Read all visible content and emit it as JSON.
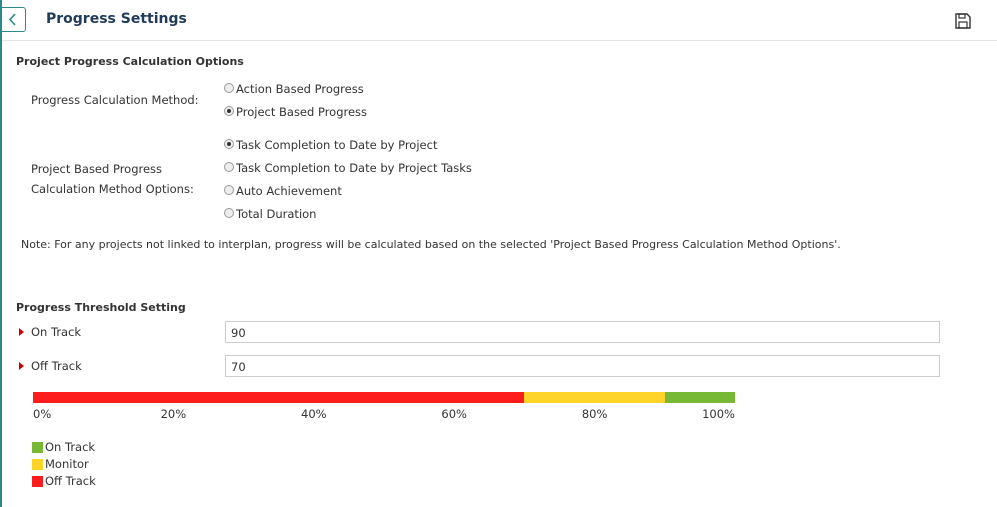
{
  "header": {
    "title": "Progress Settings"
  },
  "calculation": {
    "title": "Project Progress Calculation Options",
    "method": {
      "label": "Progress Calculation Method:",
      "options": [
        "Action Based Progress",
        "Project Based Progress"
      ],
      "selected": 1
    },
    "method_options": {
      "label_lines": [
        "Project Based Progress",
        "Calculation Method Options:"
      ],
      "options": [
        "Task Completion to Date by Project",
        "Task Completion to Date by Project Tasks",
        "Auto Achievement",
        "Total Duration"
      ],
      "selected": 0
    },
    "note": "Note: For any projects not linked to interplan, progress will be calculated based on the selected 'Project Based Progress Calculation Method Options'."
  },
  "threshold": {
    "title": "Progress Threshold Setting",
    "fields": [
      {
        "label": "On Track",
        "value": 90
      },
      {
        "label": "Off Track",
        "value": 70
      }
    ],
    "bar": {
      "range": [
        0,
        100
      ],
      "ticks": [
        {
          "value": 0,
          "label": "0%"
        },
        {
          "value": 20,
          "label": "20%"
        },
        {
          "value": 40,
          "label": "40%"
        },
        {
          "value": 60,
          "label": "60%"
        },
        {
          "value": 80,
          "label": "80%"
        },
        {
          "value": 100,
          "label": "100%"
        }
      ]
    },
    "legend": [
      {
        "label": "On Track",
        "color": "#77b935"
      },
      {
        "label": "Monitor",
        "color": "#fed42a"
      },
      {
        "label": "Off Track",
        "color": "#fe1d1d"
      }
    ]
  }
}
